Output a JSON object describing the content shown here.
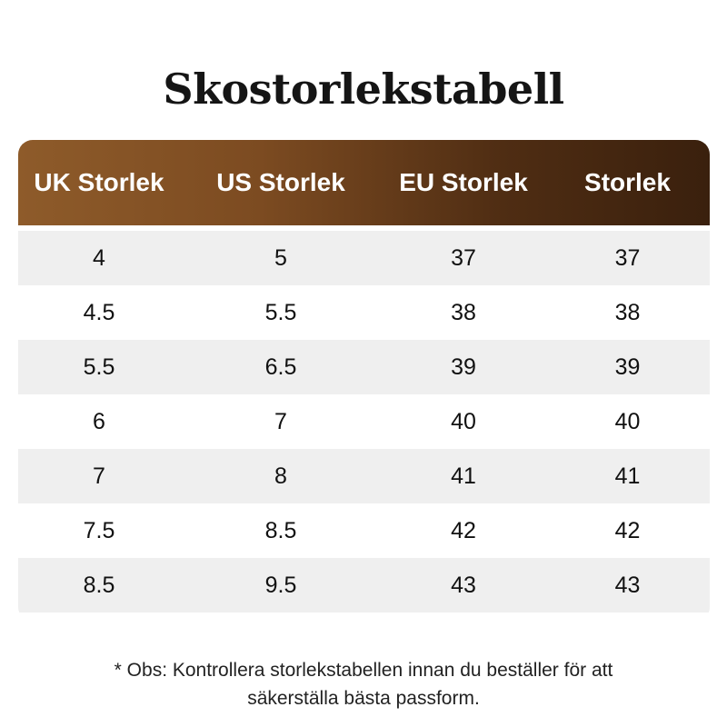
{
  "title": "Skostorlekstabell",
  "table": {
    "headers": [
      "UK Storlek",
      "US Storlek",
      "EU Storlek",
      "Storlek"
    ],
    "rows": [
      [
        "4",
        "5",
        "37",
        "37"
      ],
      [
        "4.5",
        "5.5",
        "38",
        "38"
      ],
      [
        "5.5",
        "6.5",
        "39",
        "39"
      ],
      [
        "6",
        "7",
        "40",
        "40"
      ],
      [
        "7",
        "8",
        "41",
        "41"
      ],
      [
        "7.5",
        "8.5",
        "42",
        "42"
      ],
      [
        "8.5",
        "9.5",
        "43",
        "43"
      ]
    ]
  },
  "note": {
    "line1": "* Obs: Kontrollera storlekstabellen innan du beställer för att",
    "line2": "säkerställa bästa passform."
  },
  "colors": {
    "header_gradient_start": "#8e5b2a",
    "header_gradient_end": "#3a200d",
    "row_stripe": "#efefef"
  }
}
